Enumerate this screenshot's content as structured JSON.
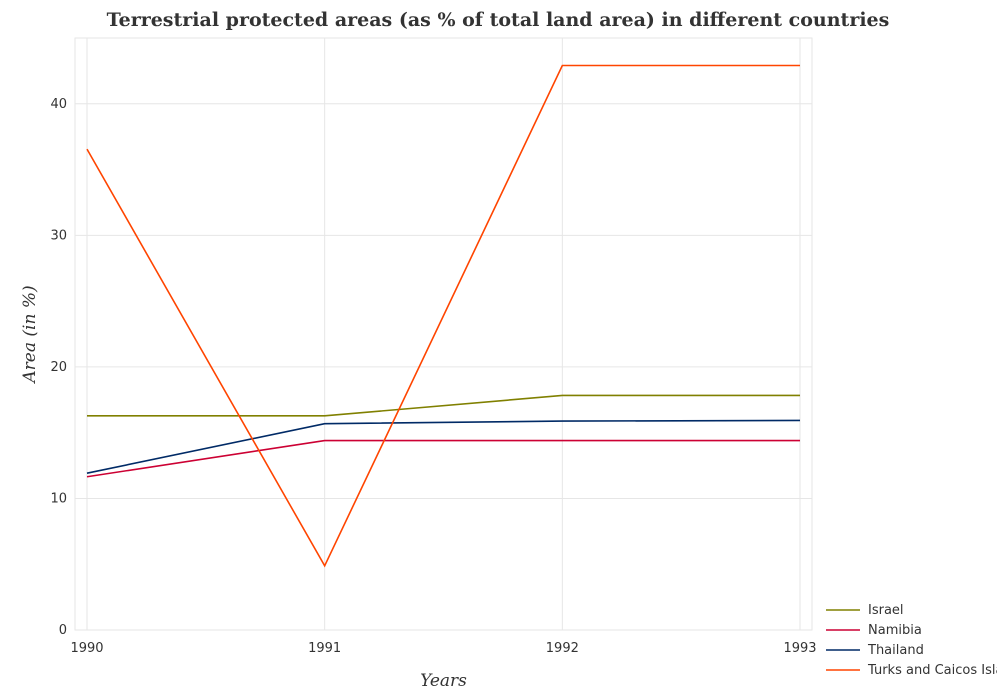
{
  "chart_data": {
    "type": "line",
    "title": "Terrestrial protected areas (as % of total land area) in different countries",
    "xlabel": "Years",
    "ylabel": "Area (in %)",
    "x": [
      "1990",
      "1991",
      "1992",
      "1993"
    ],
    "ylim": [
      0,
      45
    ],
    "yticks": [
      0,
      10,
      20,
      30,
      40
    ],
    "grid": true,
    "legend_position": "bottom-right",
    "series": [
      {
        "name": "Israel",
        "color": "#808000",
        "values": [
          16.28,
          16.28,
          17.83,
          17.83
        ]
      },
      {
        "name": "Namibia",
        "color": "#cc0033",
        "values": [
          11.65,
          14.4,
          14.4,
          14.4
        ]
      },
      {
        "name": "Thailand",
        "color": "#002a66",
        "values": [
          11.92,
          15.68,
          15.88,
          15.93
        ]
      },
      {
        "name": "Turks and Caicos Islands",
        "color": "#ff4500",
        "values": [
          36.55,
          4.88,
          42.91,
          42.91
        ]
      }
    ]
  }
}
